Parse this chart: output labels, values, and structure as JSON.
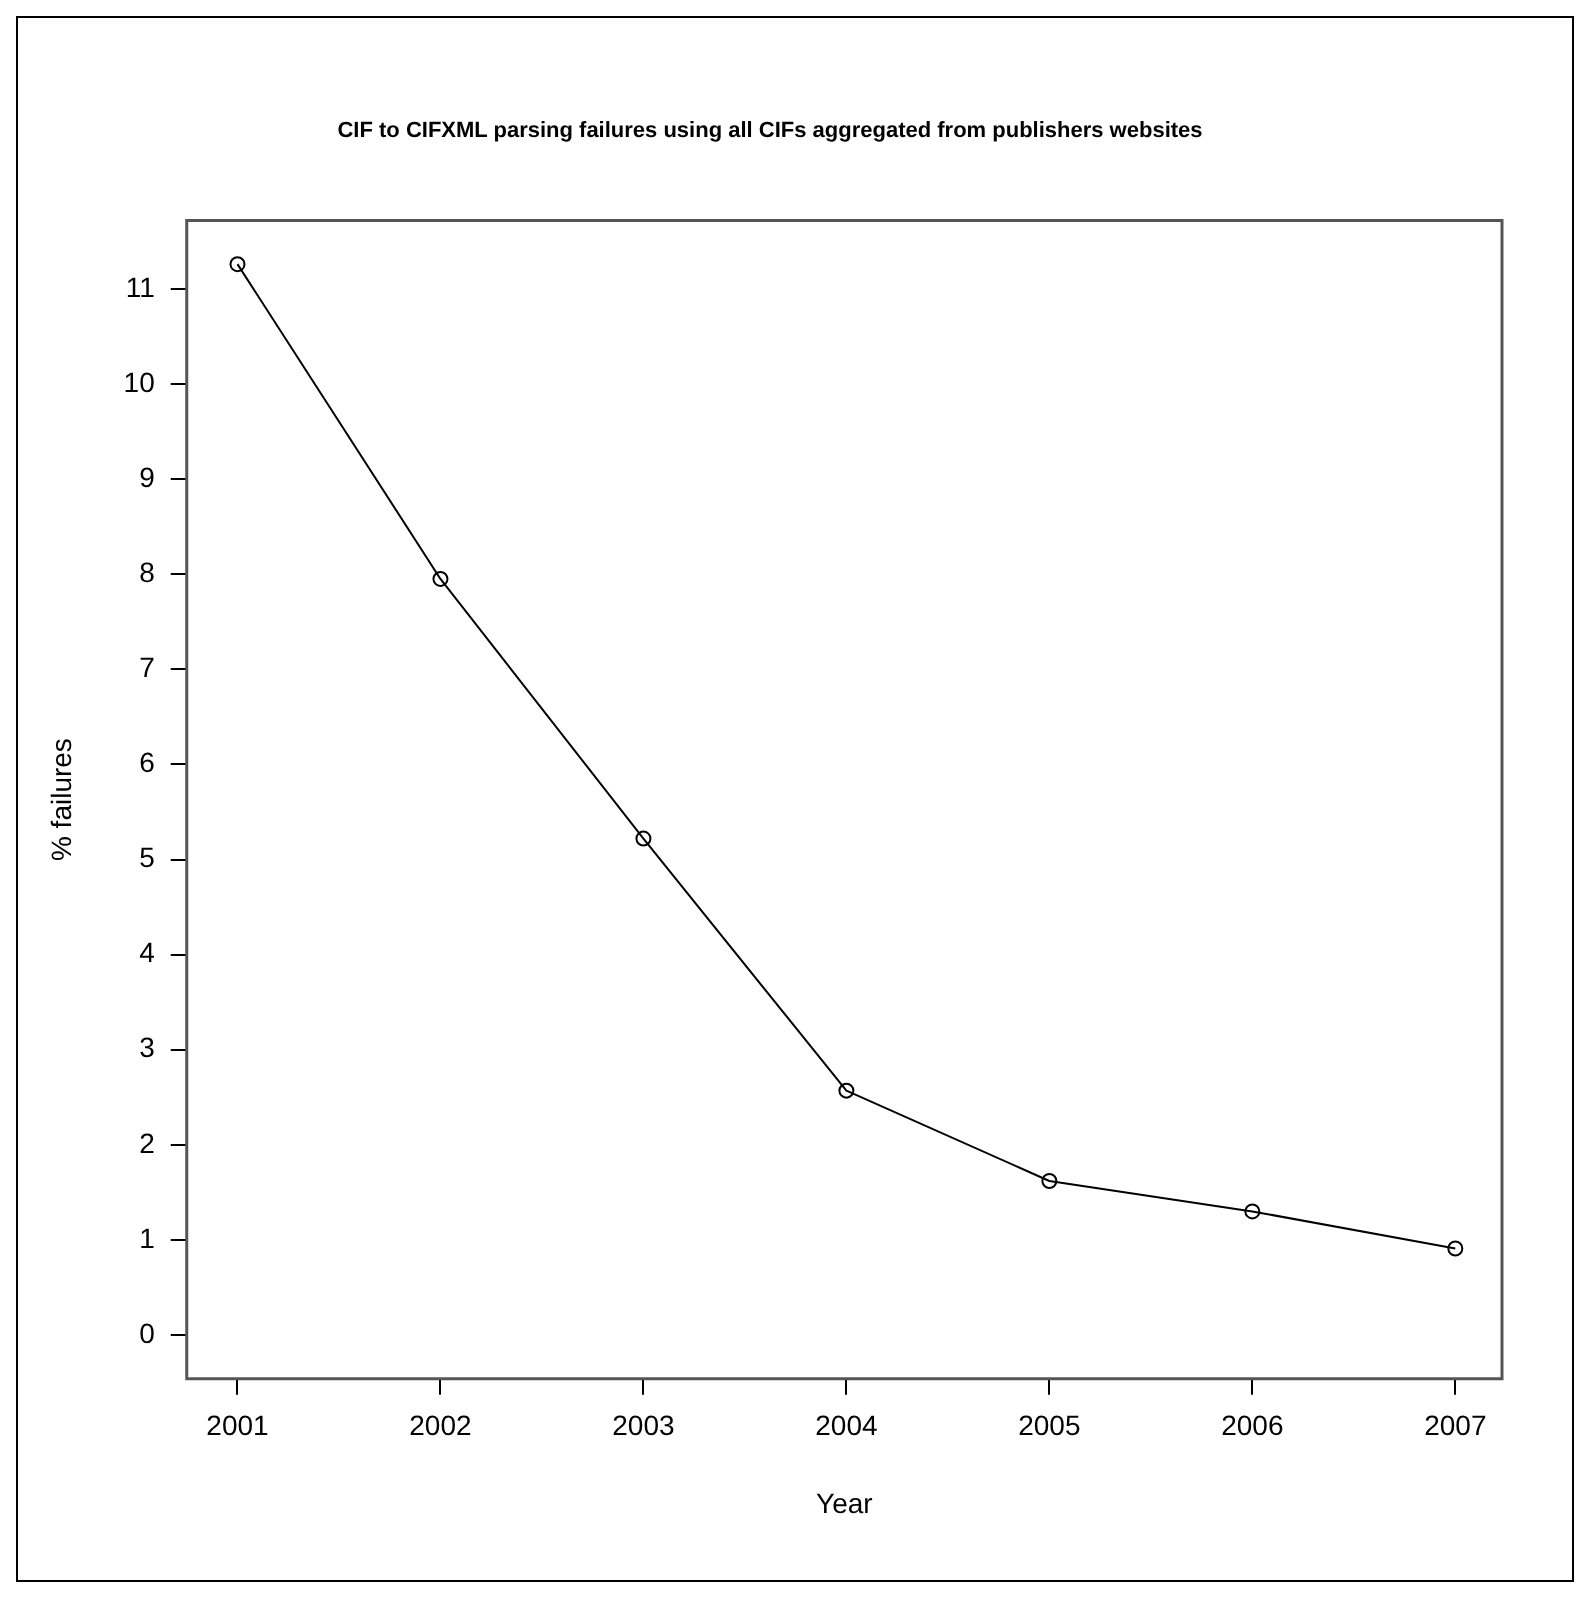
{
  "chart_data": {
    "type": "line",
    "title": "CIF to CIFXML parsing failures using all CIFs aggregated from publishers websites",
    "xlabel": "Year",
    "ylabel": "% failures",
    "x": [
      2001,
      2002,
      2003,
      2004,
      2005,
      2006,
      2007
    ],
    "series": [
      {
        "color": "#000000",
        "values": [
          11.26,
          7.95,
          5.22,
          2.57,
          1.62,
          1.3,
          0.91
        ]
      }
    ],
    "xlim": [
      2000.75,
      2007.23
    ],
    "xticks": [
      2001,
      2002,
      2003,
      2004,
      2005,
      2006,
      2007
    ],
    "ylim": [
      -0.46,
      11.72
    ],
    "yticks": [
      0,
      1,
      2,
      3,
      4,
      5,
      6,
      7,
      8,
      9,
      10,
      11
    ],
    "grid": false,
    "legend": false,
    "marker": "circle",
    "line_style": "solid"
  }
}
